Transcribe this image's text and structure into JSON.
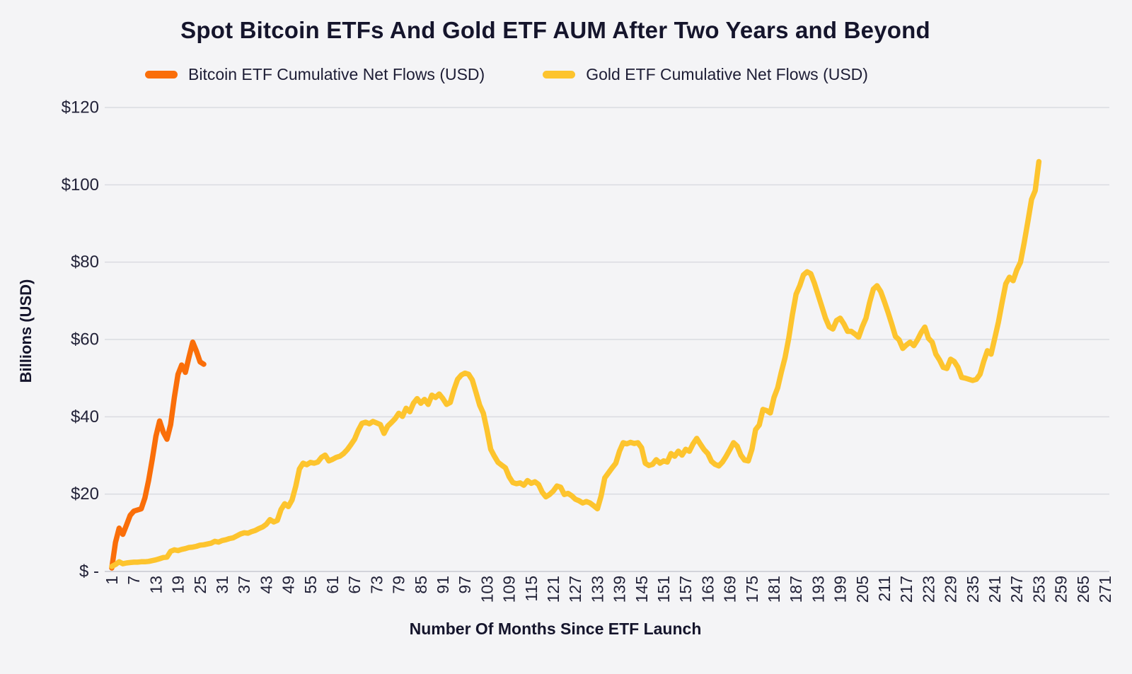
{
  "chart_data": {
    "type": "line",
    "title": "Spot Bitcoin ETFs And Gold ETF AUM After Two Years and Beyond",
    "xlabel": "Number Of Months Since ETF Launch",
    "ylabel": "Billions (USD)",
    "xlim": [
      1,
      274
    ],
    "ylim": [
      0,
      120
    ],
    "grid": "horizontal",
    "legend_position": "top",
    "background": "#f4f4f6",
    "grid_color": "#dadbe1",
    "y_ticks": {
      "values": [
        0,
        20,
        40,
        60,
        80,
        100,
        120
      ],
      "labels": [
        "$ -",
        "$20",
        "$40",
        "$60",
        "$80",
        "$100",
        "$120"
      ]
    },
    "x_ticks": [
      1,
      7,
      13,
      19,
      25,
      31,
      37,
      43,
      49,
      55,
      61,
      67,
      73,
      79,
      85,
      91,
      97,
      103,
      109,
      115,
      121,
      127,
      133,
      139,
      145,
      151,
      157,
      163,
      169,
      175,
      181,
      187,
      193,
      199,
      205,
      211,
      217,
      223,
      229,
      235,
      241,
      247,
      253,
      259,
      265,
      271
    ],
    "series": [
      {
        "name": "Bitcoin ETF Cumulative Net Flows (USD)",
        "color": "#fa6e09",
        "x_start": 1,
        "values": [
          0.9,
          7.5,
          11.2,
          9.6,
          12.0,
          14.5,
          15.6,
          15.9,
          16.2,
          19.0,
          23.5,
          29.0,
          35.0,
          38.9,
          36.0,
          34.2,
          38.0,
          45.0,
          51.0,
          53.4,
          51.5,
          55.5,
          59.3,
          57.0,
          54.2,
          53.6
        ]
      },
      {
        "name": "Gold ETF Cumulative Net Flows (USD)",
        "color": "#fdc42e",
        "x_start": 1,
        "values": [
          1.3,
          1.8,
          2.5,
          2.0,
          2.2,
          2.3,
          2.4,
          2.4,
          2.5,
          2.5,
          2.6,
          2.8,
          3.0,
          3.3,
          3.6,
          3.7,
          5.2,
          5.6,
          5.4,
          5.7,
          5.9,
          6.2,
          6.3,
          6.5,
          6.8,
          6.9,
          7.1,
          7.3,
          7.8,
          7.6,
          8.0,
          8.2,
          8.5,
          8.7,
          9.2,
          9.7,
          10.0,
          9.9,
          10.3,
          10.6,
          11.1,
          11.5,
          12.2,
          13.4,
          12.8,
          13.2,
          16.0,
          17.5,
          16.8,
          18.5,
          22.0,
          26.5,
          28.0,
          27.6,
          28.2,
          28.0,
          28.3,
          29.5,
          30.1,
          28.6,
          29.0,
          29.5,
          29.8,
          30.5,
          31.5,
          32.8,
          34.2,
          36.5,
          38.3,
          38.6,
          38.2,
          38.8,
          38.4,
          38.0,
          35.7,
          37.6,
          38.5,
          39.5,
          40.9,
          40.1,
          42.2,
          41.3,
          43.5,
          44.7,
          43.5,
          44.5,
          43.2,
          45.6,
          45.0,
          45.9,
          44.7,
          43.2,
          43.7,
          47.0,
          49.7,
          50.8,
          51.3,
          51.0,
          49.5,
          46.3,
          43.0,
          40.9,
          36.5,
          31.6,
          29.8,
          28.2,
          27.5,
          26.8,
          24.5,
          23.0,
          22.7,
          22.9,
          22.3,
          23.5,
          22.8,
          23.2,
          22.5,
          20.5,
          19.3,
          19.9,
          20.8,
          22.1,
          21.8,
          19.9,
          20.2,
          19.6,
          18.7,
          18.3,
          17.7,
          18.1,
          17.7,
          17.0,
          16.2,
          19.5,
          24.2,
          25.5,
          26.8,
          28.0,
          31.1,
          33.3,
          33.0,
          33.4,
          33.1,
          33.3,
          32.0,
          28.0,
          27.4,
          27.7,
          28.9,
          28.0,
          28.6,
          28.3,
          30.5,
          29.8,
          31.1,
          30.1,
          31.6,
          31.1,
          33.0,
          34.4,
          32.9,
          31.5,
          30.5,
          28.5,
          27.7,
          27.3,
          28.3,
          29.8,
          31.5,
          33.3,
          32.4,
          30.1,
          28.8,
          28.6,
          31.6,
          36.7,
          37.9,
          41.9,
          41.6,
          41.0,
          45.0,
          47.5,
          51.6,
          55.3,
          60.3,
          66.4,
          71.7,
          73.9,
          76.7,
          77.5,
          77.0,
          74.5,
          71.5,
          68.5,
          65.5,
          63.3,
          62.7,
          64.9,
          65.5,
          64.0,
          62.1,
          62.1,
          61.4,
          60.6,
          63.3,
          65.5,
          69.6,
          73.0,
          73.9,
          72.4,
          69.8,
          67.0,
          64.0,
          60.8,
          59.9,
          57.7,
          58.6,
          59.3,
          58.4,
          59.9,
          61.8,
          63.2,
          60.3,
          59.3,
          56.2,
          54.7,
          52.8,
          52.5,
          54.9,
          54.3,
          52.8,
          50.2,
          50.0,
          49.7,
          49.4,
          49.7,
          51.0,
          54.3,
          57.1,
          56.2,
          60.3,
          64.5,
          69.6,
          74.4,
          76.1,
          75.2,
          78.0,
          80.0,
          85.0,
          90.5,
          96.2,
          98.5,
          106.0
        ]
      }
    ]
  }
}
